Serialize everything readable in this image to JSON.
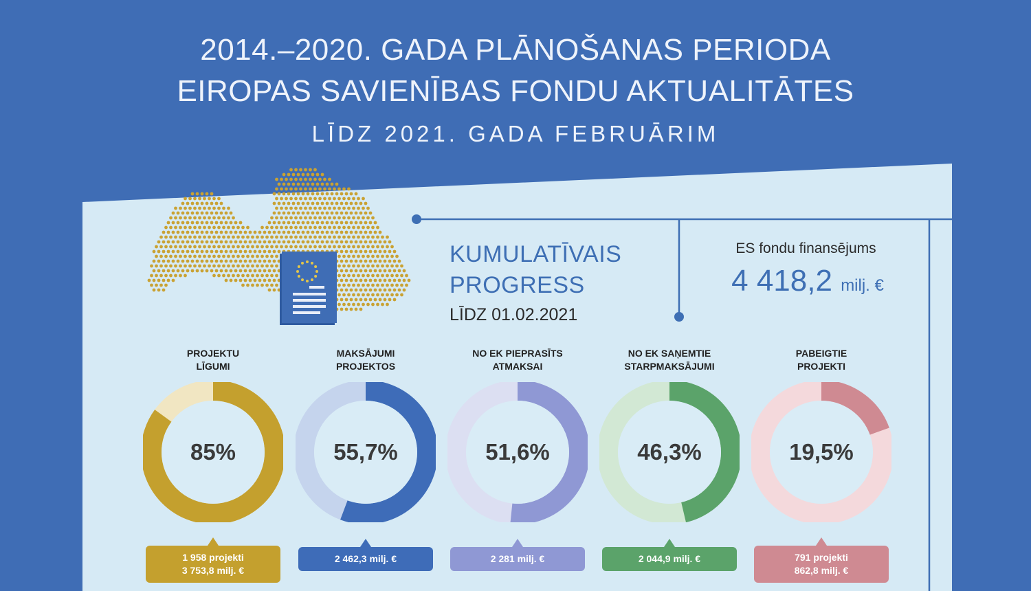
{
  "header": {
    "title_line1": "2014.–2020. GADA PLĀNOŠANAS PERIODA",
    "title_line2": "EIROPAS SAVIENĪBAS FONDU AKTUALITĀTES",
    "subtitle": "LĪDZ 2021. GADA FEBRUĀRIM"
  },
  "summary": {
    "title_line1": "KUMULATĪVAIS",
    "title_line2": "PROGRESS",
    "date": "LĪDZ 01.02.2021",
    "funding_label": "ES fondu finansējums",
    "funding_value": "4 418,2",
    "funding_unit": "milj. €"
  },
  "colors": {
    "background": "#3f6db5",
    "panel": "#d6eaf5",
    "accent": "#3e6fb4",
    "map_dots": "#c9a233"
  },
  "chart_data": {
    "type": "donut",
    "series": [
      {
        "label_line1": "PROJEKTU",
        "label_line2": "LĪGUMI",
        "percent": 85,
        "percent_text": "85%",
        "color": "#c4a02e",
        "light_color": "#f1e6c2",
        "box_line1": "1 958 projekti",
        "box_line2": "3 753,8 milj. €"
      },
      {
        "label_line1": "MAKSĀJUMI",
        "label_line2": "PROJEKTOS",
        "percent": 55.7,
        "percent_text": "55,7%",
        "color": "#3e6cb8",
        "light_color": "#c5d4ed",
        "box_line1": "2 462,3 milj. €",
        "box_line2": ""
      },
      {
        "label_line1": "NO EK PIEPRASĪTS",
        "label_line2": "ATMAKSAI",
        "percent": 51.6,
        "percent_text": "51,6%",
        "color": "#8f98d4",
        "light_color": "#dcdff2",
        "box_line1": "2 281 milj. €",
        "box_line2": ""
      },
      {
        "label_line1": "NO EK SAŅEMTIE",
        "label_line2": "STARPMAKSĀJUMI",
        "percent": 46.3,
        "percent_text": "46,3%",
        "color": "#5ba36a",
        "light_color": "#d2e8d4",
        "box_line1": "2 044,9 milj. €",
        "box_line2": ""
      },
      {
        "label_line1": "PABEIGTIE",
        "label_line2": "PROJEKTI",
        "percent": 19.5,
        "percent_text": "19,5%",
        "color": "#cf8a92",
        "light_color": "#f4d9dc",
        "box_line1": "791 projekti",
        "box_line2": "862,8 milj. €"
      }
    ]
  }
}
